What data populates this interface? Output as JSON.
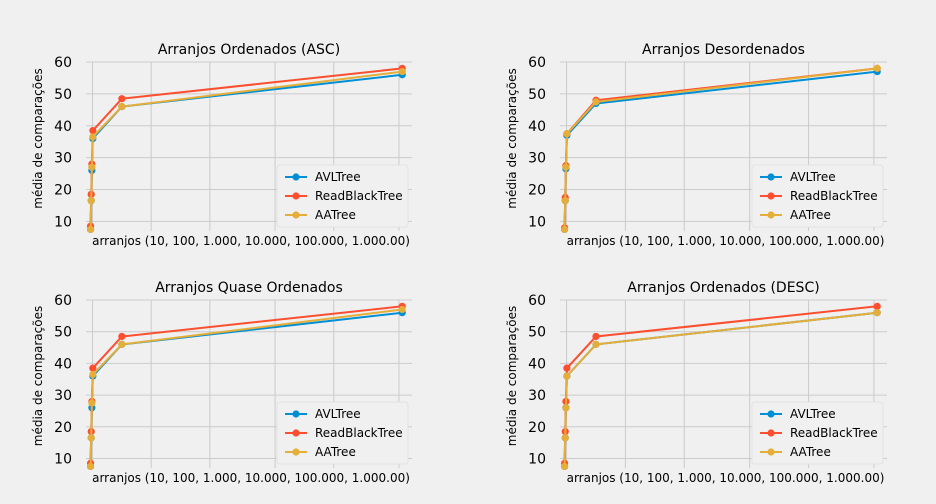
{
  "chart_data": [
    {
      "type": "line",
      "title": "Arranjos Ordenados (ASC)",
      "xlabel": "arranjos (10, 100, 1.000, 10.000, 100.000, 1.000.00)",
      "ylabel": "média de comparações",
      "x": [
        10,
        100,
        1000,
        10000,
        100000,
        1000000
      ],
      "ylim": [
        7,
        60
      ],
      "yticks": [
        10,
        20,
        30,
        40,
        50,
        60
      ],
      "grid": true,
      "legend_position": "lower-right",
      "series": [
        {
          "name": "AVLTree",
          "color": "#008fd5",
          "values": [
            7.5,
            16.5,
            26,
            36,
            46,
            56
          ]
        },
        {
          "name": "ReadBlackTree",
          "color": "#fc4f30",
          "values": [
            8.5,
            18.5,
            28,
            38.5,
            48.5,
            58
          ]
        },
        {
          "name": "AATree",
          "color": "#e5ae38",
          "values": [
            7.5,
            16.5,
            27,
            36.5,
            46,
            57
          ]
        }
      ]
    },
    {
      "type": "line",
      "title": "Arranjos Desordenados",
      "xlabel": "arranjos (10, 100, 1.000, 10.000, 100.000, 1.000.00)",
      "ylabel": "média de comparações",
      "x": [
        10,
        100,
        1000,
        10000,
        100000,
        1000000
      ],
      "ylim": [
        7,
        60
      ],
      "yticks": [
        10,
        20,
        30,
        40,
        50,
        60
      ],
      "grid": true,
      "legend_position": "lower-right",
      "series": [
        {
          "name": "AVLTree",
          "color": "#008fd5",
          "values": [
            7.5,
            16.5,
            26.5,
            37,
            47,
            57
          ]
        },
        {
          "name": "ReadBlackTree",
          "color": "#fc4f30",
          "values": [
            8,
            17.5,
            27.5,
            37.5,
            48,
            58
          ]
        },
        {
          "name": "AATree",
          "color": "#e5ae38",
          "values": [
            7.5,
            16.5,
            27,
            37.5,
            47.5,
            58
          ]
        }
      ]
    },
    {
      "type": "line",
      "title": "Arranjos Quase Ordenados",
      "xlabel": "arranjos (10, 100, 1.000, 10.000, 100.000, 1.000.00)",
      "ylabel": "média de comparações",
      "x": [
        10,
        100,
        1000,
        10000,
        100000,
        1000000
      ],
      "ylim": [
        7,
        60
      ],
      "yticks": [
        10,
        20,
        30,
        40,
        50,
        60
      ],
      "grid": true,
      "legend_position": "lower-right",
      "series": [
        {
          "name": "AVLTree",
          "color": "#008fd5",
          "values": [
            7.5,
            16.5,
            26,
            36,
            46,
            56
          ]
        },
        {
          "name": "ReadBlackTree",
          "color": "#fc4f30",
          "values": [
            8.5,
            18.5,
            28,
            38.5,
            48.5,
            58
          ]
        },
        {
          "name": "AATree",
          "color": "#e5ae38",
          "values": [
            7.5,
            16.5,
            27.5,
            36.5,
            46,
            57
          ]
        }
      ]
    },
    {
      "type": "line",
      "title": "Arranjos Ordenados (DESC)",
      "xlabel": "arranjos (10, 100, 1.000, 10.000, 100.000, 1.000.00)",
      "ylabel": "média de comparações",
      "x": [
        10,
        100,
        1000,
        10000,
        100000,
        1000000
      ],
      "ylim": [
        7,
        60
      ],
      "yticks": [
        10,
        20,
        30,
        40,
        50,
        60
      ],
      "grid": true,
      "legend_position": "lower-right",
      "series": [
        {
          "name": "AVLTree",
          "color": "#008fd5",
          "values": [
            7.5,
            16.5,
            26,
            36,
            46,
            56
          ]
        },
        {
          "name": "ReadBlackTree",
          "color": "#fc4f30",
          "values": [
            8.5,
            18.5,
            28,
            38.5,
            48.5,
            58
          ]
        },
        {
          "name": "AATree",
          "color": "#e5ae38",
          "values": [
            7.5,
            16.5,
            26,
            36,
            46,
            56
          ]
        }
      ]
    }
  ]
}
